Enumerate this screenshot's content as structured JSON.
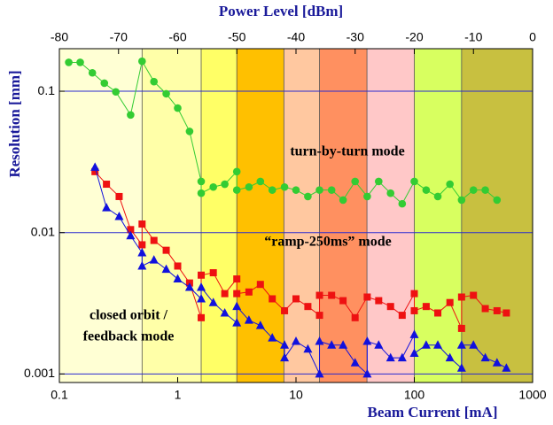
{
  "chart_data": {
    "type": "scatter",
    "title": "Power Level [dBm]",
    "x_label": "Beam Current [mA]",
    "y_label": "Resolution [mm]",
    "x_log": true,
    "y_log": true,
    "xlim": [
      0.1,
      1000
    ],
    "xticks": [
      0.1,
      1,
      10,
      100,
      1000
    ],
    "ylim": [
      0.00087,
      0.2
    ],
    "yticks": [
      0.001,
      0.01,
      0.1
    ],
    "x2lim": [
      -80,
      0
    ],
    "x2ticks": [
      -80,
      -70,
      -60,
      -50,
      -40,
      -30,
      -20,
      -10,
      0
    ],
    "grid": true,
    "grid_color": "#2a2ad0",
    "bands": [
      {
        "from": 0.1,
        "to": 0.5,
        "color": "#ffffd4"
      },
      {
        "from": 0.5,
        "to": 1.58,
        "color": "#ffffa8"
      },
      {
        "from": 1.58,
        "to": 3.16,
        "color": "#ffff66"
      },
      {
        "from": 3.16,
        "to": 7.9,
        "color": "#ffc000"
      },
      {
        "from": 7.9,
        "to": 15.8,
        "color": "#ffc8a0"
      },
      {
        "from": 15.8,
        "to": 39.8,
        "color": "#ff9060"
      },
      {
        "from": 39.8,
        "to": 100,
        "color": "#ffc8c8"
      },
      {
        "from": 100,
        "to": 251,
        "color": "#d8ff60"
      },
      {
        "from": 251,
        "to": 1000,
        "color": "#c8c040"
      }
    ],
    "annotations": [
      {
        "text": "turn-by-turn mode",
        "color": "#33cc33"
      },
      {
        "text": "“ramp-250ms” mode",
        "color": "#ee2211"
      },
      {
        "text": "closed orbit /",
        "color": "#1a1aaa"
      },
      {
        "text": "feedback mode",
        "color": "#1a1aaa"
      }
    ],
    "series": [
      {
        "name": "turn-by-turn",
        "color": "#33cc33",
        "marker": "circle",
        "x": [
          0.12,
          0.15,
          0.19,
          0.24,
          0.3,
          0.4,
          0.5,
          0.63,
          0.8,
          1.0,
          1.26,
          1.58,
          1.58,
          2.0,
          2.5,
          3.16,
          3.16,
          4.0,
          5.0,
          6.3,
          8.0,
          10,
          12.6,
          15.8,
          20,
          25,
          31.6,
          40,
          50,
          63,
          79,
          100,
          126,
          158,
          200,
          251,
          316,
          398,
          500
        ],
        "values": [
          0.16,
          0.16,
          0.135,
          0.114,
          0.099,
          0.068,
          0.163,
          0.117,
          0.096,
          0.076,
          0.052,
          0.023,
          0.019,
          0.021,
          0.022,
          0.027,
          0.02,
          0.021,
          0.023,
          0.02,
          0.021,
          0.02,
          0.018,
          0.02,
          0.02,
          0.017,
          0.023,
          0.018,
          0.023,
          0.019,
          0.016,
          0.023,
          0.02,
          0.018,
          0.022,
          0.017,
          0.02,
          0.02,
          0.017
        ]
      },
      {
        "name": "ramp-250ms",
        "color": "#ee1111",
        "marker": "square",
        "x": [
          0.2,
          0.25,
          0.32,
          0.4,
          0.5,
          0.5,
          0.63,
          0.8,
          1.0,
          1.26,
          1.58,
          1.58,
          2.0,
          2.5,
          3.16,
          3.16,
          4.0,
          5.0,
          6.3,
          8.0,
          10,
          12.6,
          15.8,
          15.8,
          20,
          25,
          31.6,
          40,
          50,
          63,
          79,
          100,
          100,
          126,
          158,
          200,
          251,
          251,
          316,
          398,
          500,
          600
        ],
        "values": [
          0.027,
          0.022,
          0.018,
          0.0105,
          0.0082,
          0.0115,
          0.0088,
          0.0075,
          0.0058,
          0.0044,
          0.0025,
          0.005,
          0.0052,
          0.0037,
          0.0047,
          0.0037,
          0.0038,
          0.0043,
          0.0034,
          0.0028,
          0.0034,
          0.003,
          0.0026,
          0.0036,
          0.0036,
          0.0033,
          0.0025,
          0.0035,
          0.0033,
          0.003,
          0.0026,
          0.0037,
          0.0028,
          0.003,
          0.0027,
          0.0032,
          0.0021,
          0.0035,
          0.0036,
          0.0029,
          0.0028,
          0.0027
        ]
      },
      {
        "name": "closed orbit / feedback",
        "color": "#1111dd",
        "marker": "triangle",
        "x": [
          0.2,
          0.25,
          0.32,
          0.4,
          0.5,
          0.5,
          0.63,
          0.8,
          1.0,
          1.26,
          1.58,
          1.58,
          2.0,
          2.5,
          3.16,
          3.16,
          4.0,
          5.0,
          6.3,
          8.0,
          8.0,
          10,
          12.6,
          15.8,
          15.8,
          20,
          25,
          31.6,
          40,
          40,
          50,
          63,
          79,
          100,
          100,
          126,
          158,
          200,
          251,
          251,
          316,
          398,
          500,
          600
        ],
        "values": [
          0.029,
          0.015,
          0.013,
          0.0095,
          0.0072,
          0.0058,
          0.0064,
          0.0055,
          0.0047,
          0.0041,
          0.0034,
          0.0041,
          0.0032,
          0.0027,
          0.0023,
          0.003,
          0.0024,
          0.0022,
          0.0018,
          0.0016,
          0.0013,
          0.0017,
          0.0015,
          0.001,
          0.0017,
          0.0016,
          0.0016,
          0.0012,
          0.001,
          0.0017,
          0.0016,
          0.0013,
          0.0013,
          0.0019,
          0.0014,
          0.0016,
          0.0016,
          0.0013,
          0.0011,
          0.0016,
          0.0016,
          0.0013,
          0.0012,
          0.0011
        ]
      }
    ]
  }
}
